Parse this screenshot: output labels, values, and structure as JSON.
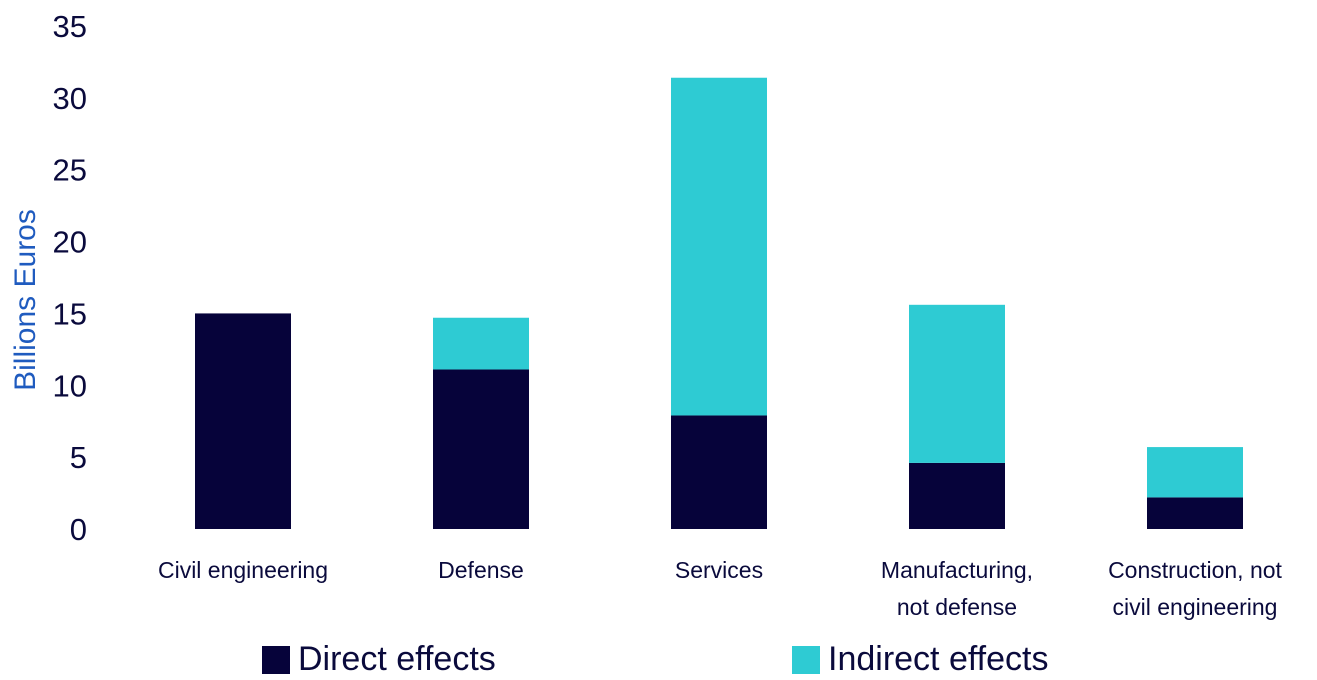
{
  "chart_data": {
    "type": "bar",
    "stacked": true,
    "title": "",
    "xlabel": "",
    "ylabel": "Billions Euros",
    "ylim": [
      0,
      35
    ],
    "yticks": [
      0,
      5,
      10,
      15,
      20,
      25,
      30,
      35
    ],
    "grid": false,
    "legend_position": "bottom",
    "categories": [
      [
        "Civil engineering"
      ],
      [
        "Defense"
      ],
      [
        "Services"
      ],
      [
        "Manufacturing,",
        "not defense"
      ],
      [
        "Construction, not",
        "civil engineering"
      ]
    ],
    "series": [
      {
        "name": "Direct effects",
        "color": "#06033a",
        "values": [
          15.0,
          11.1,
          7.9,
          4.6,
          2.2
        ]
      },
      {
        "name": "Indirect effects",
        "color": "#2ecbd3",
        "values": [
          0.0,
          3.6,
          23.5,
          11.0,
          3.5
        ]
      }
    ],
    "colors": {
      "axis_text": "#0a0a3c",
      "ylabel": "#1f5bbf"
    }
  }
}
